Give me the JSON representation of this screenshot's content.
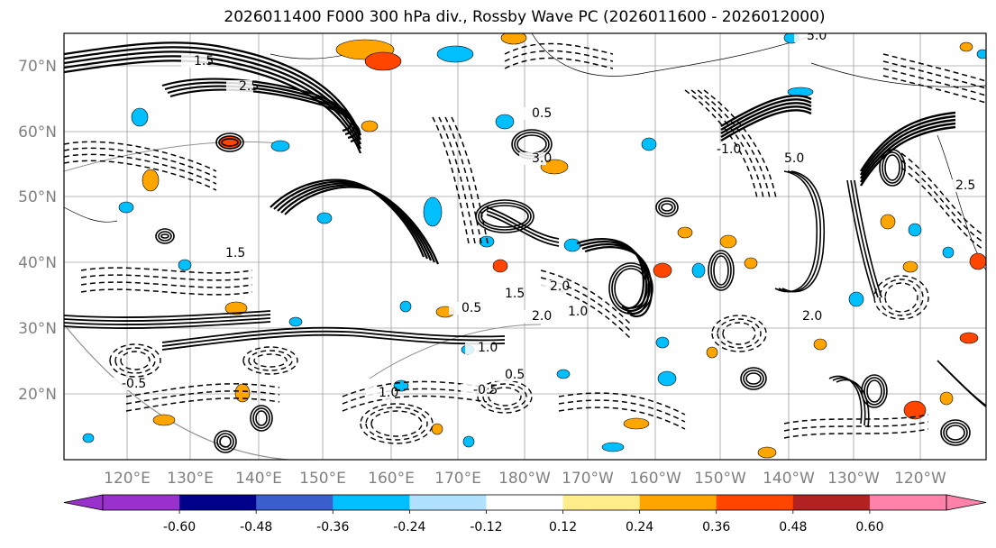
{
  "title": "2026011400 F000 300 hPa div., Rossby Wave PC (2026011600 - 2026012000)",
  "map": {
    "lat_labels": [
      "70°N",
      "60°N",
      "50°N",
      "40°N",
      "30°N",
      "20°N"
    ],
    "lon_labels": [
      "120°E",
      "130°E",
      "140°E",
      "150°E",
      "160°E",
      "170°E",
      "180°W",
      "170°W",
      "160°W",
      "150°W",
      "140°W",
      "130°W",
      "120°W"
    ],
    "contour_labels": [
      "5.0",
      "1.5",
      "2.5",
      "3.0",
      "0.5",
      "1.0",
      "2.0",
      "0.5",
      "1.0",
      "1.5",
      "-0.5",
      "2.0",
      "5.0",
      "2.5",
      "-0.5",
      "0.5",
      "1.0",
      "-1.0",
      "2.0",
      "1.5"
    ],
    "label_color": "#808080"
  },
  "colorbar": {
    "ticks": [
      "-0.60",
      "-0.48",
      "-0.36",
      "-0.24",
      "-0.12",
      "0.12",
      "0.24",
      "0.36",
      "0.48",
      "0.60"
    ],
    "colors": [
      "#9932cc",
      "#00008b",
      "#3a5fcd",
      "#00bfff",
      "#b0e2ff",
      "#ffffff",
      "#ffec8b",
      "#ffa500",
      "#ff4500",
      "#b22222",
      "#ff82ab"
    ],
    "under_color": "#9932cc",
    "over_color": "#ff82ab"
  }
}
